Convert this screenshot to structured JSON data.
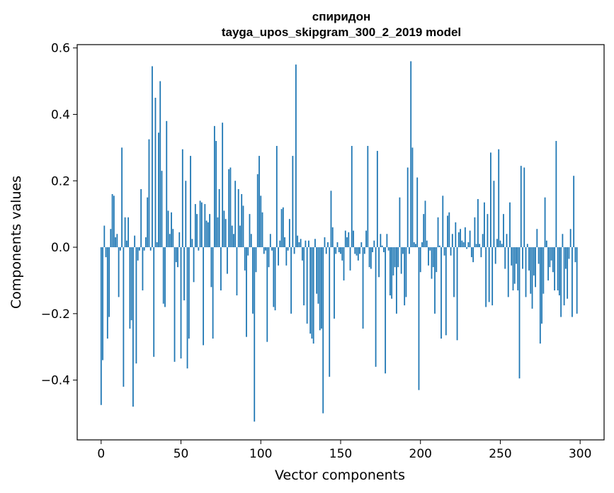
{
  "chart_data": {
    "type": "bar",
    "title": "спиридон",
    "subtitle": "tayga_upos_skipgram_300_2_2019 model",
    "xlabel": "Vector components",
    "ylabel": "Components values",
    "xlim": [
      -15,
      315
    ],
    "ylim": [
      -0.58,
      0.61
    ],
    "xticks": [
      0,
      50,
      100,
      150,
      200,
      250,
      300
    ],
    "xtick_labels": [
      "0",
      "50",
      "100",
      "150",
      "200",
      "250",
      "300"
    ],
    "yticks": [
      -0.4,
      -0.2,
      0.0,
      0.2,
      0.4,
      0.6
    ],
    "ytick_labels": [
      "−0.4",
      "−0.2",
      "0.0",
      "0.2",
      "0.4",
      "0.6"
    ],
    "grid": false,
    "bar_color": "#1f77b4",
    "values": [
      -0.475,
      -0.34,
      0.065,
      -0.03,
      -0.275,
      -0.21,
      0.055,
      0.16,
      0.155,
      0.03,
      0.04,
      -0.15,
      -0.01,
      0.3,
      -0.42,
      0.09,
      0.02,
      0.09,
      -0.245,
      -0.22,
      -0.48,
      0.035,
      -0.35,
      -0.04,
      -0.01,
      0.175,
      -0.13,
      -0.01,
      0.03,
      0.15,
      0.325,
      -0.01,
      0.545,
      -0.33,
      0.45,
      0.015,
      0.345,
      0.5,
      0.23,
      -0.17,
      -0.18,
      0.38,
      0.11,
      0.04,
      0.105,
      0.055,
      -0.345,
      -0.045,
      -0.06,
      0.045,
      -0.335,
      0.295,
      -0.16,
      0.2,
      -0.365,
      -0.275,
      0.275,
      0.025,
      -0.105,
      0.13,
      0.1,
      -0.01,
      0.14,
      0.135,
      -0.295,
      0.13,
      0.08,
      0.075,
      0.1,
      -0.12,
      -0.275,
      0.365,
      0.32,
      0.09,
      0.175,
      -0.13,
      0.375,
      0.11,
      0.085,
      -0.08,
      0.235,
      0.24,
      0.065,
      0.04,
      0.2,
      -0.145,
      0.175,
      0.065,
      0.16,
      0.125,
      -0.07,
      -0.27,
      -0.025,
      0.1,
      0.04,
      -0.2,
      -0.525,
      -0.075,
      0.22,
      0.275,
      0.155,
      0.105,
      -0.02,
      -0.01,
      -0.285,
      -0.06,
      0.04,
      -0.01,
      -0.18,
      -0.19,
      0.305,
      -0.055,
      0.02,
      0.115,
      0.12,
      0.03,
      -0.055,
      -0.01,
      0.085,
      -0.2,
      0.275,
      -0.02,
      0.55,
      0.035,
      0.015,
      0.025,
      -0.04,
      -0.175,
      0.02,
      -0.23,
      0.02,
      -0.26,
      -0.275,
      -0.29,
      0.025,
      -0.14,
      -0.17,
      -0.25,
      -0.245,
      -0.5,
      0.03,
      -0.02,
      0.015,
      -0.39,
      0.17,
      0.06,
      -0.215,
      -0.02,
      0.015,
      -0.015,
      -0.02,
      -0.04,
      -0.1,
      0.05,
      0.03,
      0.045,
      -0.07,
      0.305,
      0.05,
      -0.02,
      -0.025,
      -0.04,
      -0.02,
      0.015,
      -0.245,
      -0.02,
      0.05,
      0.305,
      -0.06,
      -0.065,
      -0.015,
      0.02,
      -0.36,
      0.29,
      -0.09,
      0.04,
      0.005,
      -0.015,
      -0.38,
      0.04,
      -0.01,
      -0.145,
      -0.155,
      -0.085,
      -0.06,
      -0.2,
      -0.06,
      0.15,
      -0.08,
      -0.02,
      -0.175,
      -0.15,
      0.24,
      -0.02,
      0.56,
      0.3,
      0.015,
      0.01,
      0.21,
      -0.43,
      -0.075,
      0.015,
      0.1,
      0.14,
      0.02,
      -0.055,
      -0.01,
      -0.095,
      -0.06,
      -0.2,
      -0.075,
      0.09,
      0.005,
      -0.275,
      0.155,
      -0.025,
      -0.265,
      0.095,
      0.105,
      -0.025,
      0.04,
      -0.15,
      0.075,
      -0.28,
      0.045,
      0.055,
      0.02,
      0.015,
      0.06,
      -0.005,
      0.015,
      0.05,
      -0.03,
      -0.045,
      0.09,
      0.01,
      0.145,
      0.01,
      -0.03,
      0.04,
      0.135,
      -0.18,
      0.1,
      -0.165,
      0.285,
      -0.175,
      0.2,
      -0.05,
      0.025,
      0.295,
      0.02,
      0.01,
      0.1,
      -0.065,
      0.04,
      -0.15,
      0.135,
      -0.055,
      -0.13,
      -0.11,
      -0.05,
      -0.13,
      -0.395,
      0.245,
      -0.065,
      0.24,
      -0.15,
      0.01,
      -0.07,
      -0.14,
      -0.185,
      -0.085,
      -0.12,
      0.055,
      -0.05,
      -0.29,
      -0.23,
      -0.14,
      0.15,
      0.02,
      -0.1,
      -0.06,
      -0.04,
      -0.075,
      -0.13,
      0.32,
      -0.13,
      -0.145,
      -0.21,
      0.04,
      -0.175,
      -0.065,
      -0.155,
      -0.035,
      0.055,
      -0.21,
      0.215,
      -0.045,
      -0.2
    ]
  }
}
